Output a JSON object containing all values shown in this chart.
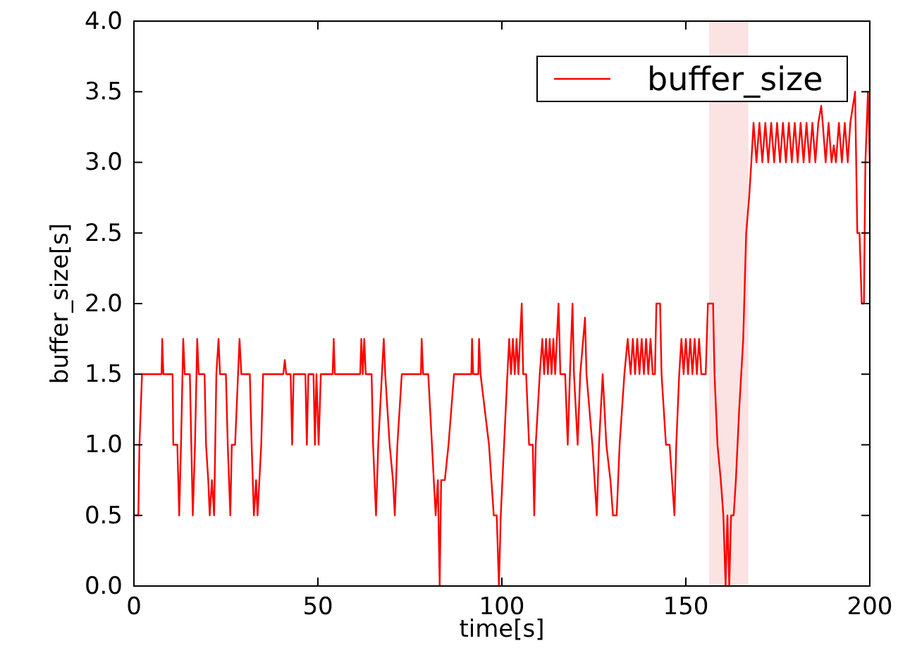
{
  "chart_data": {
    "type": "line",
    "xlabel": "time[s]",
    "ylabel": "buffer_size[s]",
    "xlim": [
      0,
      200
    ],
    "xticks": [
      0,
      50,
      100,
      150,
      200
    ],
    "ylim": [
      0,
      4
    ],
    "yticks": [
      {
        "value": 0,
        "label": "0.0"
      },
      {
        "value": 0.5,
        "label": "0.5"
      },
      {
        "value": 1,
        "label": "1.0"
      },
      {
        "value": 1.5,
        "label": "1.5"
      },
      {
        "value": 2,
        "label": "2.0"
      },
      {
        "value": 2.5,
        "label": "2.5"
      },
      {
        "value": 3,
        "label": "3.0"
      },
      {
        "value": 3.5,
        "label": "3.5"
      },
      {
        "value": 4,
        "label": "4.0"
      }
    ],
    "legend": "top right",
    "marker": "none",
    "line_style": "solid",
    "bands": [
      {
        "axis": "x",
        "from": 156.3,
        "to": 167,
        "color": "#fbe3e3"
      }
    ],
    "series": [
      {
        "name": "buffer_size",
        "color": "#ff0000",
        "x": [
          0,
          1.2,
          1.5,
          2.2,
          7.5,
          7.7,
          8,
          10.5,
          10.7,
          11.8,
          12.3,
          12.8,
          13.2,
          13.4,
          13.8,
          15.2,
          15.6,
          16,
          16.6,
          17,
          17.2,
          17.6,
          19.2,
          19.6,
          20.2,
          20.6,
          21.2,
          21.8,
          22.4,
          23,
          23.4,
          25,
          25.5,
          26.2,
          26.6,
          27.5,
          28.3,
          28.7,
          29.2,
          31.5,
          32,
          32.6,
          33.2,
          33.6,
          34.6,
          35.1,
          40.6,
          41,
          41.4,
          42.6,
          43,
          43.4,
          46.6,
          47,
          47.4,
          48.8,
          49.2,
          49.6,
          50.2,
          50.8,
          54,
          54.3,
          54.6,
          61.5,
          61.8,
          62.2,
          62.6,
          63,
          64.6,
          65,
          65.8,
          66.4,
          67.4,
          67.9,
          68.3,
          69.5,
          70.4,
          70.9,
          71.6,
          72.8,
          78,
          78.2,
          78.6,
          80,
          81,
          82,
          82.6,
          83.1,
          83.5,
          84.5,
          85.5,
          87,
          91.7,
          91.9,
          92.2,
          93.6,
          93.8,
          94.2,
          96.5,
          97.8,
          98.6,
          99.2,
          99.7,
          100.6,
          101.5,
          102,
          102.5,
          103,
          103.5,
          104,
          104.5,
          105.4,
          105.8,
          106.6,
          107.4,
          108.4,
          108.8,
          109.2,
          110.3,
          111,
          111.5,
          112,
          112.5,
          113,
          113.5,
          114,
          114.5,
          115.4,
          115.9,
          117.2,
          117.9,
          118.5,
          119.2,
          119.6,
          120.6,
          121.3,
          122.6,
          123,
          124.6,
          125.8,
          126.4,
          127.4,
          128.4,
          129.5,
          130.2,
          131.2,
          132,
          133.3,
          134.2,
          135,
          135.6,
          136.2,
          136.8,
          137.4,
          138,
          138.6,
          139.2,
          139.8,
          140.4,
          141,
          141.6,
          142,
          143,
          143.4,
          144.6,
          145.6,
          146.9,
          147.4,
          148.2,
          148.8,
          149.4,
          150,
          150.6,
          151.2,
          151.8,
          152.4,
          153,
          153.6,
          154.2,
          155.4,
          156,
          157.4,
          157.8,
          158.6,
          159.5,
          160.2,
          160.8,
          161.3,
          161.8,
          162.3,
          163,
          163.6,
          164.5,
          165.6,
          166.4,
          167.2,
          167.8,
          168.4,
          169.2,
          170,
          170.8,
          171.6,
          172.4,
          173.2,
          174,
          174.8,
          175.6,
          176.4,
          177.2,
          178,
          178.8,
          179.6,
          180.4,
          181.2,
          182,
          182.8,
          183.6,
          184.4,
          185.2,
          186,
          186.8,
          187.2,
          188,
          188.8,
          189.6,
          190.2,
          190.8,
          191.6,
          192.4,
          193.2,
          194,
          194.7,
          196,
          196.3,
          196.6,
          197.2,
          197.8,
          198.4,
          198.8,
          199.5,
          200
        ],
        "values": [
          0.5,
          0.5,
          1.0,
          1.5,
          1.5,
          1.75,
          1.5,
          1.5,
          1.0,
          1.0,
          0.5,
          1.0,
          1.5,
          1.75,
          1.5,
          1.5,
          1.0,
          0.5,
          1.0,
          1.5,
          1.75,
          1.5,
          1.5,
          1.0,
          0.75,
          0.5,
          0.75,
          0.5,
          1.5,
          1.75,
          1.5,
          1.5,
          1.0,
          0.5,
          1.0,
          1.0,
          1.5,
          1.75,
          1.5,
          1.5,
          1.0,
          0.5,
          0.75,
          0.5,
          1.0,
          1.5,
          1.5,
          1.6,
          1.5,
          1.5,
          1.0,
          1.5,
          1.5,
          1.0,
          1.5,
          1.5,
          1.0,
          1.5,
          1.0,
          1.5,
          1.5,
          1.75,
          1.5,
          1.5,
          1.75,
          1.5,
          1.75,
          1.5,
          1.5,
          1.0,
          0.5,
          1.0,
          1.5,
          1.75,
          1.5,
          1.0,
          0.75,
          0.5,
          1.0,
          1.5,
          1.5,
          1.75,
          1.5,
          1.5,
          1.0,
          0.5,
          0.75,
          0.0,
          0.75,
          0.75,
          1.0,
          1.5,
          1.5,
          1.75,
          1.5,
          1.5,
          1.75,
          1.5,
          1.0,
          0.5,
          0.5,
          0.0,
          0.5,
          1.0,
          1.5,
          1.75,
          1.5,
          1.75,
          1.5,
          1.75,
          1.5,
          2.0,
          1.5,
          1.5,
          1.0,
          1.0,
          0.5,
          1.0,
          1.5,
          1.75,
          1.5,
          1.75,
          1.5,
          1.75,
          1.5,
          1.75,
          1.5,
          2.0,
          1.5,
          1.5,
          1.0,
          1.5,
          2.0,
          1.5,
          1.0,
          1.5,
          1.9,
          1.5,
          1.0,
          0.5,
          1.0,
          1.5,
          1.0,
          0.75,
          0.5,
          0.5,
          1.0,
          1.5,
          1.75,
          1.5,
          1.75,
          1.5,
          1.75,
          1.5,
          1.75,
          1.5,
          1.75,
          1.5,
          1.75,
          1.5,
          1.5,
          2.0,
          2.0,
          1.5,
          1.0,
          1.0,
          0.5,
          1.0,
          1.5,
          1.75,
          1.5,
          1.75,
          1.5,
          1.75,
          1.5,
          1.75,
          1.5,
          1.75,
          1.5,
          1.5,
          2.0,
          2.0,
          1.5,
          1.0,
          0.75,
          0.5,
          0.0,
          0.5,
          0.0,
          0.5,
          0.5,
          0.75,
          1.25,
          1.75,
          2.5,
          2.75,
          3.0,
          3.28,
          3.0,
          3.28,
          3.0,
          3.28,
          3.0,
          3.28,
          3.0,
          3.28,
          3.0,
          3.28,
          3.0,
          3.28,
          3.0,
          3.28,
          3.0,
          3.28,
          3.0,
          3.28,
          3.0,
          3.28,
          3.0,
          3.28,
          3.4,
          3.28,
          3.0,
          3.28,
          3.0,
          3.12,
          3.0,
          3.28,
          3.0,
          3.28,
          3.0,
          3.28,
          3.5,
          3.0,
          2.5,
          2.5,
          2.0,
          2.0,
          3.0,
          3.5,
          3.0
        ]
      }
    ]
  }
}
